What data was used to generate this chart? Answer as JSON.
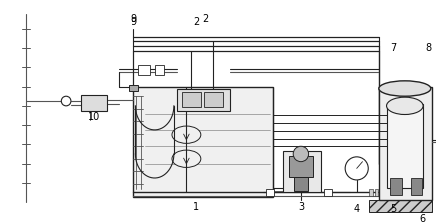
{
  "bg_color": "#ffffff",
  "lc": "#555555",
  "dark": "#222222",
  "fig_w": 4.44,
  "fig_h": 2.24,
  "dpi": 100
}
